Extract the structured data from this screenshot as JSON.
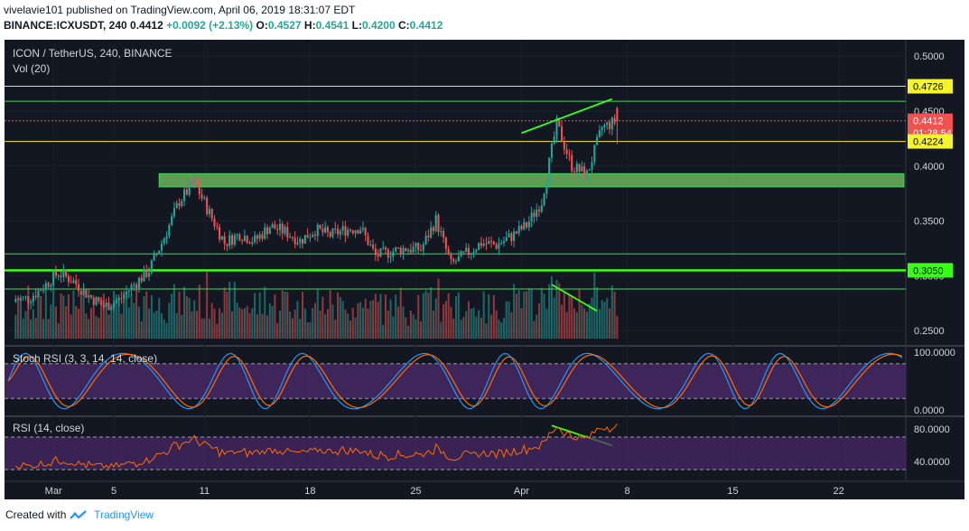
{
  "header": {
    "line1": "vivelavie101 published on TradingView.com, April 06, 2019 18:31:07 EDT",
    "symbol": "BINANCE:ICXUSDT, 240",
    "last": "0.4412",
    "change": "+0.0092 (+2.13%)",
    "o_label": "O:",
    "o_val": "0.4527",
    "h_label": "H:",
    "h_val": "0.4541",
    "l_label": "L:",
    "l_val": "0.4200",
    "c_label": "C:",
    "c_val": "0.4412"
  },
  "footer": {
    "created_with": "Created with",
    "brand": "TradingView"
  },
  "chart_data": {
    "type": "candlestick",
    "pair_label": "ICON / TetherUS, 240, BINANCE",
    "volume_label": "Vol (20)",
    "x_tick_labels": [
      "Mar",
      "5",
      "11",
      "18",
      "25",
      "Apr",
      "8",
      "15",
      "22"
    ],
    "y_tick_labels": [
      "0.5000",
      "0.4500",
      "0.4000",
      "0.3500",
      "0.3000",
      "0.2500"
    ],
    "ylim": [
      0.237,
      0.515
    ],
    "price_tags": [
      {
        "label": "0.4726",
        "value": 0.4726,
        "kind": "yellow"
      },
      {
        "label": "0.4412",
        "value": 0.4412,
        "kind": "red"
      },
      {
        "label": "01:28:54",
        "value": 0.4302,
        "kind": "red"
      },
      {
        "label": "0.4224",
        "value": 0.4224,
        "kind": "yellow"
      },
      {
        "label": "0.3050",
        "value": 0.305,
        "kind": "green"
      }
    ],
    "horizontal_lines": [
      {
        "value": 0.4726,
        "color": "#f5e63b"
      },
      {
        "value": 0.459,
        "color": "#3fd95b"
      },
      {
        "value": 0.4412,
        "color": "#ef5350",
        "dotted": true
      },
      {
        "value": 0.4224,
        "color": "#f5e63b"
      },
      {
        "value": 0.32,
        "color": "#3fd95b"
      },
      {
        "value": 0.305,
        "color": "#39ff14",
        "thick": true
      },
      {
        "value": 0.288,
        "color": "#3fd95b"
      }
    ],
    "support_zone": [
      0.381,
      0.393
    ],
    "trendlines": [
      {
        "start": [
          "2019-04-01",
          0.43
        ],
        "end": [
          "2019-04-07",
          0.461
        ],
        "panel": "price"
      },
      {
        "start": [
          "2019-04-03",
          0.292
        ],
        "end": [
          "2019-04-06",
          0.268
        ],
        "panel": "volume"
      },
      {
        "start": [
          "2019-04-03",
          87
        ],
        "end": [
          "2019-04-07",
          56
        ],
        "panel": "rsi"
      }
    ],
    "daily_closes": {
      "dates": [
        "02-26",
        "02-27",
        "02-28",
        "03-01",
        "03-02",
        "03-03",
        "03-04",
        "03-05",
        "03-06",
        "03-07",
        "03-08",
        "03-09",
        "03-10",
        "03-11",
        "03-12",
        "03-13",
        "03-14",
        "03-15",
        "03-16",
        "03-17",
        "03-18",
        "03-19",
        "03-20",
        "03-21",
        "03-22",
        "03-23",
        "03-24",
        "03-25",
        "03-26",
        "03-27",
        "03-28",
        "03-29",
        "03-30",
        "03-31",
        "04-01",
        "04-02",
        "04-03",
        "04-04",
        "04-05",
        "04-06"
      ],
      "close": [
        0.279,
        0.29,
        0.303,
        0.295,
        0.282,
        0.272,
        0.278,
        0.292,
        0.305,
        0.335,
        0.368,
        0.385,
        0.357,
        0.33,
        0.338,
        0.332,
        0.345,
        0.34,
        0.332,
        0.342,
        0.337,
        0.342,
        0.344,
        0.318,
        0.322,
        0.325,
        0.324,
        0.351,
        0.31,
        0.32,
        0.33,
        0.328,
        0.336,
        0.346,
        0.368,
        0.438,
        0.4,
        0.392,
        0.435,
        0.441
      ]
    },
    "stoch_rsi": {
      "label": "Stoch RSI (3, 3, 14, 14, close)",
      "y_tick_labels": [
        "100.0000",
        "0.0000"
      ],
      "bands": [
        80,
        20
      ]
    },
    "rsi": {
      "label": "RSI (14, close)",
      "y_tick_labels": [
        "80.0000",
        "40.0000"
      ],
      "bands": [
        70,
        30
      ]
    },
    "colors": {
      "background": "#131722",
      "up": "#26a69a",
      "down": "#ef5350",
      "stoch_k": "#2196f3",
      "stoch_d": "#ff6d00",
      "rsi": "#ff6d00",
      "band_fill": "#4a2a6a"
    }
  }
}
